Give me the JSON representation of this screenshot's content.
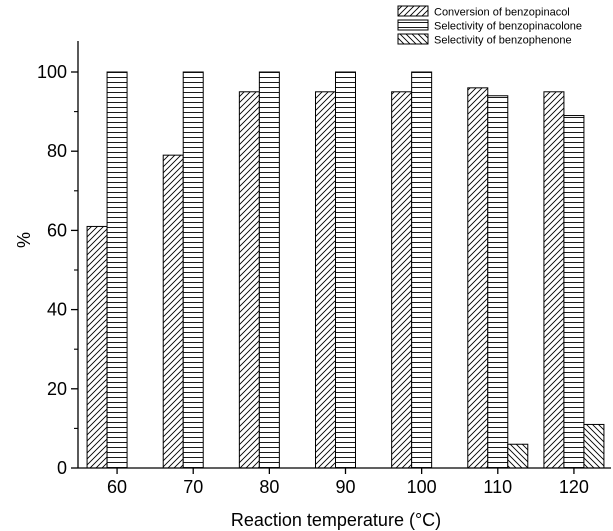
{
  "chart_data": {
    "type": "bar",
    "categories": [
      "60",
      "70",
      "80",
      "90",
      "100",
      "110",
      "120"
    ],
    "series": [
      {
        "name": "Conversion of benzopinacol",
        "pattern": "diagonal-right",
        "values": [
          61,
          79,
          95,
          95,
          95,
          96,
          95
        ]
      },
      {
        "name": "Selectivity of benzopinacolone",
        "pattern": "horizontal",
        "values": [
          100,
          100,
          100,
          100,
          100,
          94,
          89
        ]
      },
      {
        "name": "Selectivity of benzophenone",
        "pattern": "diagonal-left",
        "values": [
          0,
          0,
          0,
          0,
          0,
          6,
          11
        ]
      }
    ],
    "xlabel": "Reaction temperature (°C)",
    "ylabel": "%",
    "ylim": [
      0,
      108
    ],
    "yticks": [
      0,
      20,
      40,
      60,
      80,
      100
    ],
    "grid": false,
    "legend_position": "top-right",
    "colors": {
      "stroke": "#000000",
      "background": "#ffffff"
    }
  }
}
